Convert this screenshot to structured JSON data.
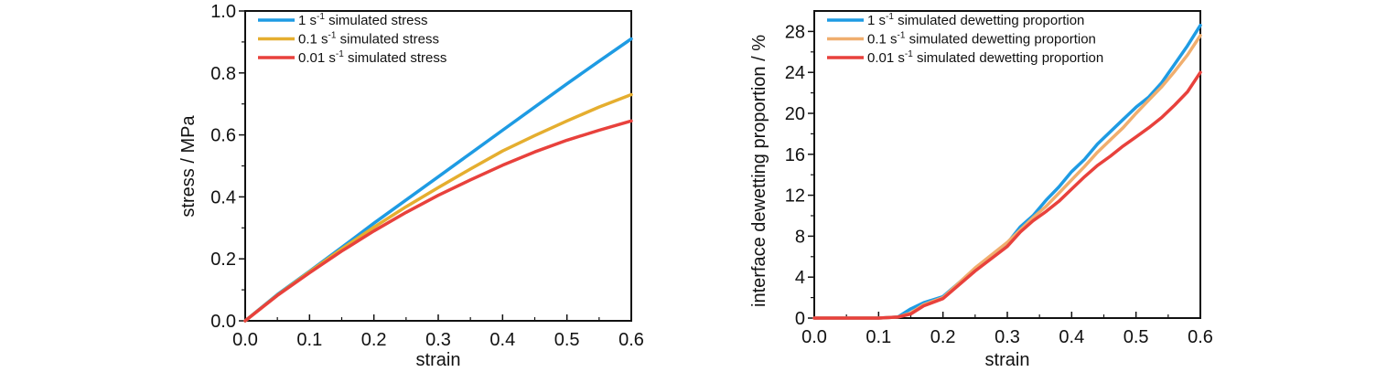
{
  "chart_data": [
    {
      "type": "line",
      "title": "",
      "xlabel": "strain",
      "ylabel": "stress / MPa",
      "xlim": [
        0,
        0.6
      ],
      "ylim": [
        0,
        1.0
      ],
      "xticks": [
        "0.0",
        "0.1",
        "0.2",
        "0.3",
        "0.4",
        "0.5",
        "0.6"
      ],
      "yticks": [
        "0.0",
        "0.2",
        "0.4",
        "0.6",
        "0.8",
        "1.0"
      ],
      "grid": false,
      "legend_position": "top-left",
      "series": [
        {
          "name": "1 s-1 simulated stress",
          "legend_base": "1 s",
          "legend_sup": "-1",
          "legend_rest": " simulated stress",
          "color": "#1E9BE3",
          "x": [
            0,
            0.05,
            0.1,
            0.15,
            0.2,
            0.25,
            0.3,
            0.35,
            0.4,
            0.45,
            0.5,
            0.55,
            0.6
          ],
          "y": [
            0,
            0.085,
            0.16,
            0.237,
            0.315,
            0.39,
            0.465,
            0.54,
            0.615,
            0.69,
            0.765,
            0.838,
            0.91
          ]
        },
        {
          "name": "0.1 s-1 simulated stress",
          "legend_base": "0.1 s",
          "legend_sup": "-1",
          "legend_rest": " simulated stress",
          "color": "#E5AE2F",
          "x": [
            0,
            0.05,
            0.1,
            0.15,
            0.2,
            0.25,
            0.3,
            0.35,
            0.4,
            0.45,
            0.5,
            0.55,
            0.6
          ],
          "y": [
            0,
            0.083,
            0.158,
            0.232,
            0.302,
            0.368,
            0.43,
            0.49,
            0.548,
            0.598,
            0.645,
            0.69,
            0.73
          ]
        },
        {
          "name": "0.01 s-1 simulated stress",
          "legend_base": "0.01 s",
          "legend_sup": "-1",
          "legend_rest": " simulated stress",
          "color": "#E8413C",
          "x": [
            0,
            0.05,
            0.1,
            0.15,
            0.2,
            0.25,
            0.3,
            0.35,
            0.4,
            0.45,
            0.5,
            0.55,
            0.6
          ],
          "y": [
            0,
            0.082,
            0.155,
            0.225,
            0.29,
            0.35,
            0.405,
            0.455,
            0.502,
            0.545,
            0.583,
            0.615,
            0.645
          ]
        }
      ]
    },
    {
      "type": "line",
      "title": "",
      "xlabel": "strain",
      "ylabel": "interface dewetting proportion / %",
      "xlim": [
        0,
        0.6
      ],
      "ylim": [
        0,
        30
      ],
      "xticks": [
        "0.0",
        "0.1",
        "0.2",
        "0.3",
        "0.4",
        "0.5",
        "0.6"
      ],
      "yticks": [
        "0",
        "4",
        "8",
        "12",
        "16",
        "20",
        "24",
        "28"
      ],
      "grid": false,
      "legend_position": "top-left",
      "series": [
        {
          "name": "1 s-1 simulated dewetting proportion",
          "legend_base": "1 s",
          "legend_sup": "-1",
          "legend_rest": " simulated dewetting proportion",
          "color": "#1E9BE3",
          "x": [
            0,
            0.05,
            0.1,
            0.13,
            0.15,
            0.17,
            0.2,
            0.25,
            0.3,
            0.32,
            0.34,
            0.36,
            0.38,
            0.4,
            0.42,
            0.44,
            0.46,
            0.48,
            0.5,
            0.52,
            0.54,
            0.56,
            0.58,
            0.6
          ],
          "y": [
            0,
            0,
            0,
            0.1,
            0.9,
            1.5,
            2.1,
            4.8,
            7.3,
            8.9,
            10.0,
            11.5,
            12.8,
            14.3,
            15.5,
            17.0,
            18.2,
            19.4,
            20.6,
            21.6,
            23.0,
            24.8,
            26.6,
            28.6
          ]
        },
        {
          "name": "0.1 s-1 simulated dewetting proportion",
          "legend_base": "0.1 s",
          "legend_sup": "-1",
          "legend_rest": " simulated dewetting proportion",
          "color": "#F0AE6E",
          "x": [
            0,
            0.05,
            0.1,
            0.13,
            0.15,
            0.17,
            0.2,
            0.25,
            0.3,
            0.32,
            0.34,
            0.36,
            0.38,
            0.4,
            0.42,
            0.44,
            0.46,
            0.48,
            0.5,
            0.52,
            0.54,
            0.56,
            0.58,
            0.6
          ],
          "y": [
            0,
            0,
            0,
            0.1,
            0.5,
            1.3,
            2.0,
            4.9,
            7.4,
            8.6,
            9.8,
            10.9,
            12.2,
            13.5,
            14.8,
            16.2,
            17.4,
            18.6,
            20.0,
            21.3,
            22.6,
            24.1,
            25.7,
            27.6
          ]
        },
        {
          "name": "0.01 s-1 simulated dewetting proportion",
          "legend_base": "0.01 s",
          "legend_sup": "-1",
          "legend_rest": " simulated dewetting proportion",
          "color": "#E8413C",
          "x": [
            0,
            0.05,
            0.1,
            0.13,
            0.15,
            0.17,
            0.2,
            0.25,
            0.3,
            0.32,
            0.34,
            0.36,
            0.38,
            0.4,
            0.42,
            0.44,
            0.46,
            0.48,
            0.5,
            0.52,
            0.54,
            0.56,
            0.58,
            0.6
          ],
          "y": [
            0,
            0,
            0,
            0.1,
            0.4,
            1.2,
            1.9,
            4.6,
            7.0,
            8.4,
            9.5,
            10.4,
            11.4,
            12.6,
            13.8,
            14.9,
            15.8,
            16.8,
            17.7,
            18.6,
            19.6,
            20.8,
            22.1,
            24.0
          ]
        }
      ]
    }
  ]
}
